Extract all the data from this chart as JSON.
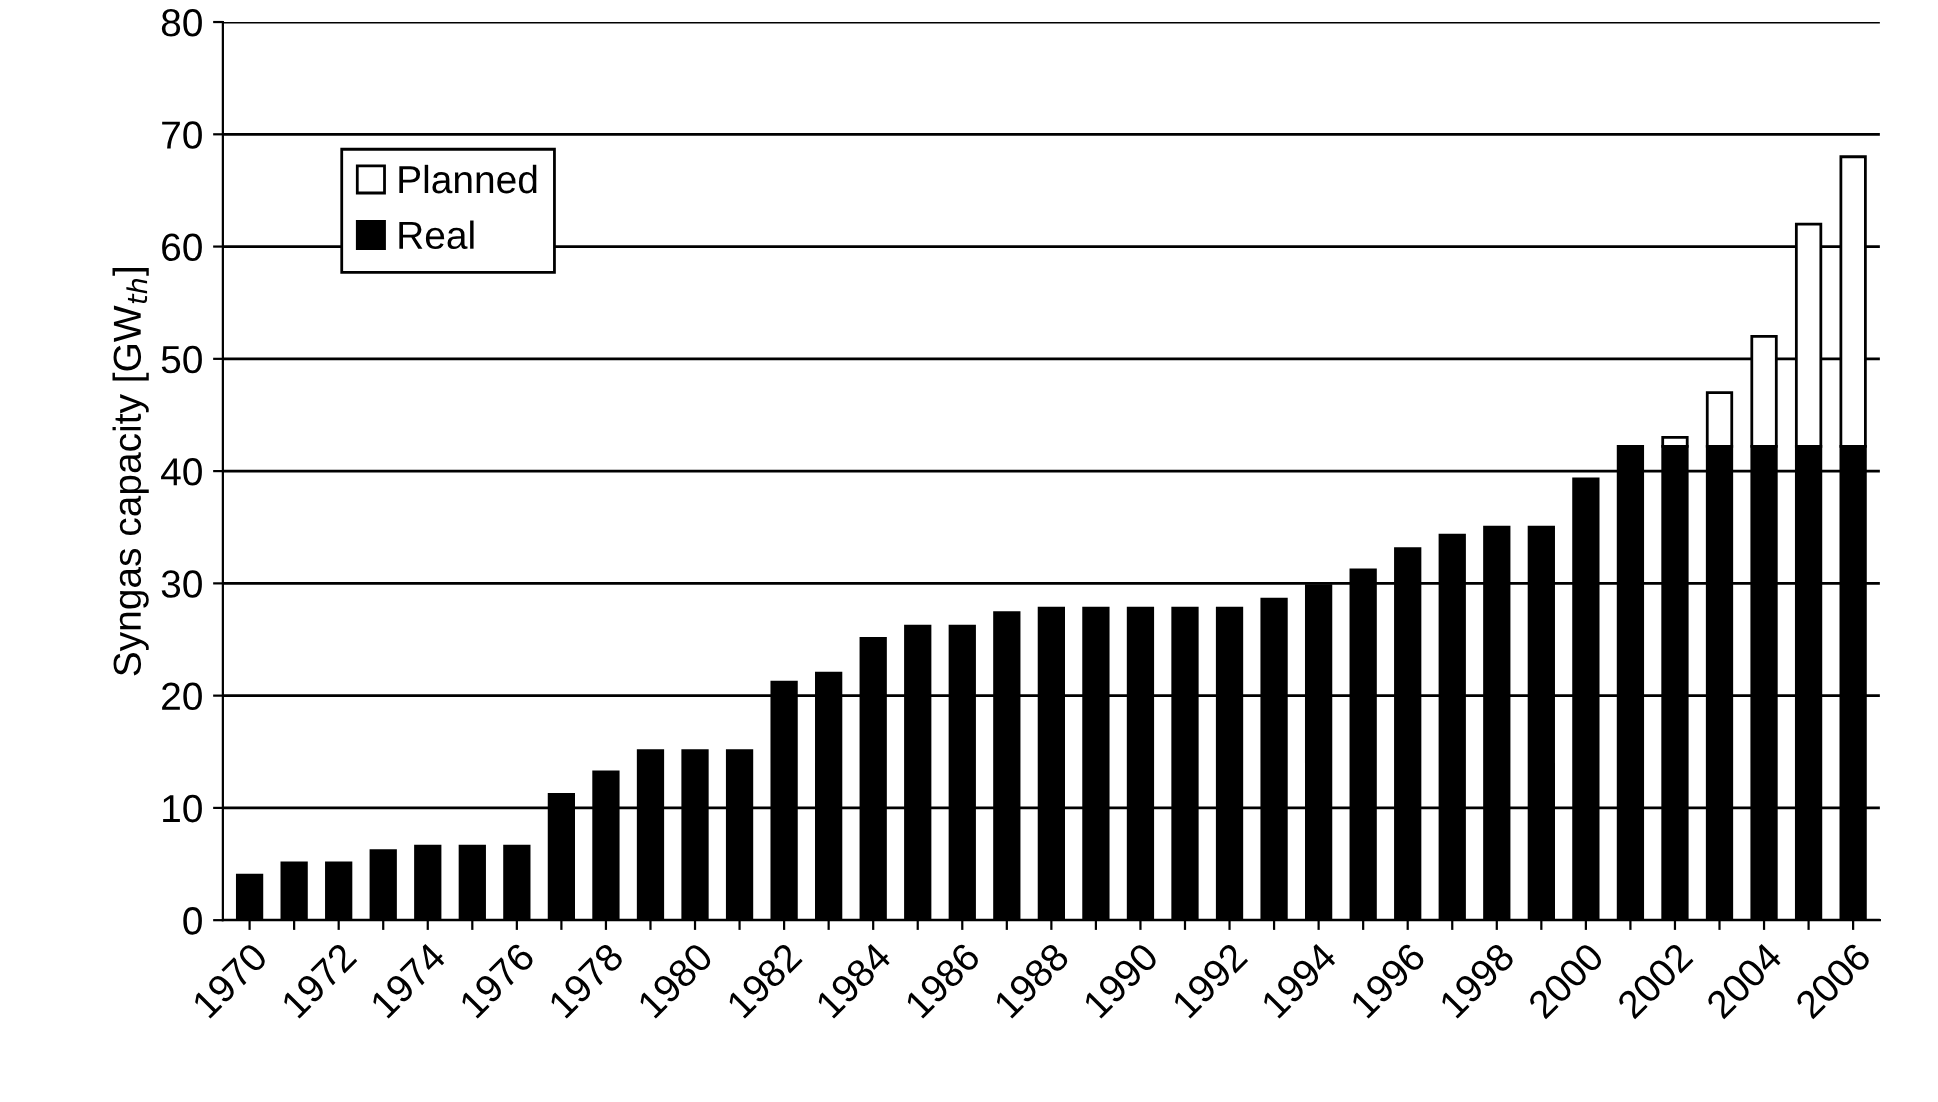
{
  "chart_data": {
    "type": "bar",
    "stacked": true,
    "ylabel": "Syngas capacity [GW$_{th}$]",
    "categories": [
      "1970",
      null,
      "1972",
      null,
      "1974",
      null,
      "1976",
      null,
      "1978",
      null,
      "1980",
      null,
      "1982",
      null,
      "1984",
      null,
      "1986",
      null,
      "1988",
      null,
      "1990",
      null,
      "1992",
      null,
      "1994",
      null,
      "1996",
      null,
      "1998",
      null,
      "2000",
      null,
      "2002",
      null,
      "2004",
      null,
      "2006"
    ],
    "series": [
      {
        "name": "Real",
        "color": "#000000",
        "values": [
          4,
          5.1,
          5.1,
          6.2,
          6.6,
          6.6,
          6.6,
          11.2,
          13.2,
          15.1,
          15.1,
          15.1,
          21.2,
          22,
          25.1,
          26.2,
          26.2,
          27.4,
          27.8,
          27.8,
          27.8,
          27.8,
          27.8,
          28.6,
          29.8,
          31.2,
          33.1,
          34.3,
          35,
          35,
          39.3,
          42.2,
          42.2,
          42.2,
          42.2,
          42.2,
          42.2
        ]
      },
      {
        "name": "Planned",
        "color": "#ffffff",
        "values": [
          null,
          null,
          null,
          null,
          null,
          null,
          null,
          null,
          null,
          null,
          null,
          null,
          null,
          null,
          null,
          null,
          null,
          null,
          null,
          null,
          null,
          null,
          null,
          null,
          null,
          null,
          null,
          null,
          null,
          null,
          null,
          null,
          0.8,
          4.8,
          9.8,
          19.8,
          25.8
        ]
      }
    ],
    "ylim": [
      0,
      80
    ],
    "yticks": [
      0,
      10,
      20,
      30,
      40,
      50,
      60,
      70,
      80
    ],
    "grid": "y",
    "legend": "top left"
  }
}
